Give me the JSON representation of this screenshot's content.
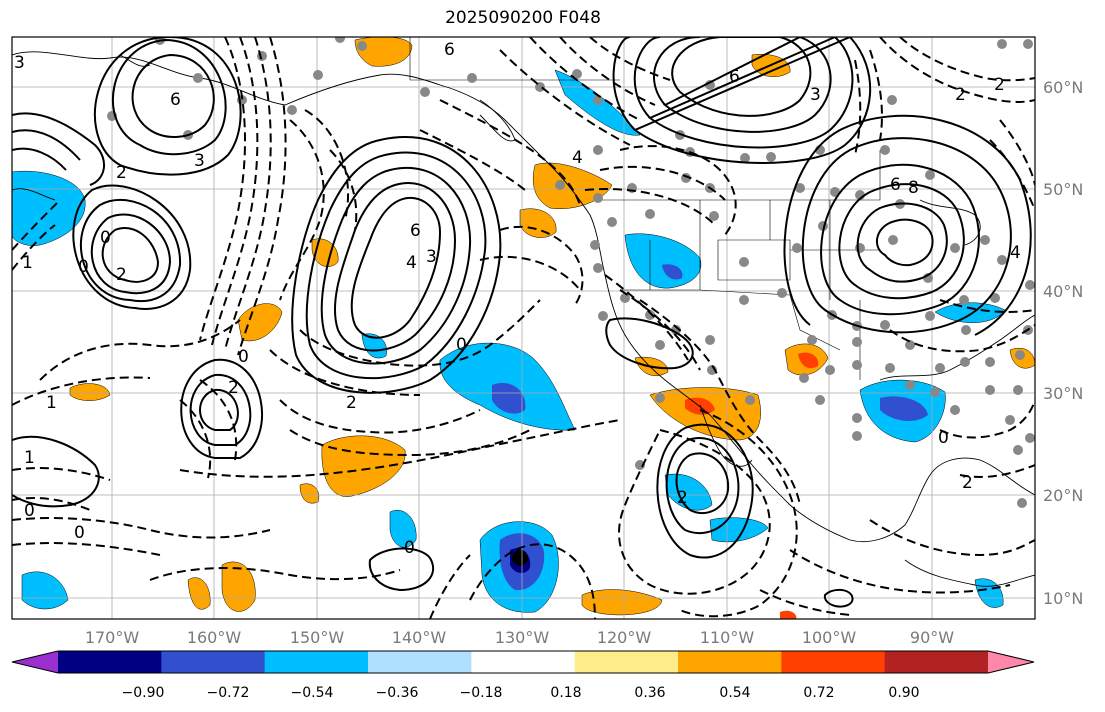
{
  "title": "2025090200 F048",
  "axes": {
    "lon_labels": [
      "170°W",
      "160°W",
      "150°W",
      "140°W",
      "130°W",
      "120°W",
      "110°W",
      "100°W",
      "90°W"
    ],
    "lat_labels": [
      "60°N",
      "50°N",
      "40°N",
      "30°N",
      "20°N",
      "10°N"
    ]
  },
  "colorbar": {
    "ticks": [
      "−0.90",
      "−0.72",
      "−0.54",
      "−0.36",
      "−0.18",
      "0.18",
      "0.36",
      "0.54",
      "0.72",
      "0.90"
    ],
    "colors": [
      "#9b30d0",
      "#000080",
      "#3050d0",
      "#00bfff",
      "#b0e0ff",
      "#ffffff",
      "#ffec8b",
      "#ffa500",
      "#ff4000",
      "#b22222",
      "#ff88aa"
    ]
  },
  "contour_labels": [
    {
      "text": "3"
    },
    {
      "text": "6"
    },
    {
      "text": "3"
    },
    {
      "text": "2"
    },
    {
      "text": "0"
    },
    {
      "text": "2"
    },
    {
      "text": "0"
    },
    {
      "text": "1"
    },
    {
      "text": "1"
    },
    {
      "text": "0"
    },
    {
      "text": "6"
    },
    {
      "text": "4"
    },
    {
      "text": "3"
    },
    {
      "text": "0"
    },
    {
      "text": "2"
    },
    {
      "text": "2"
    },
    {
      "text": "6"
    },
    {
      "text": "4"
    },
    {
      "text": "6"
    },
    {
      "text": "3"
    },
    {
      "text": "6"
    },
    {
      "text": "8"
    },
    {
      "text": "2"
    },
    {
      "text": "2"
    },
    {
      "text": "4"
    },
    {
      "text": "0"
    },
    {
      "text": "2"
    },
    {
      "text": "2"
    },
    {
      "text": "0"
    },
    {
      "text": "1"
    },
    {
      "text": "0"
    },
    {
      "text": "0"
    }
  ]
}
